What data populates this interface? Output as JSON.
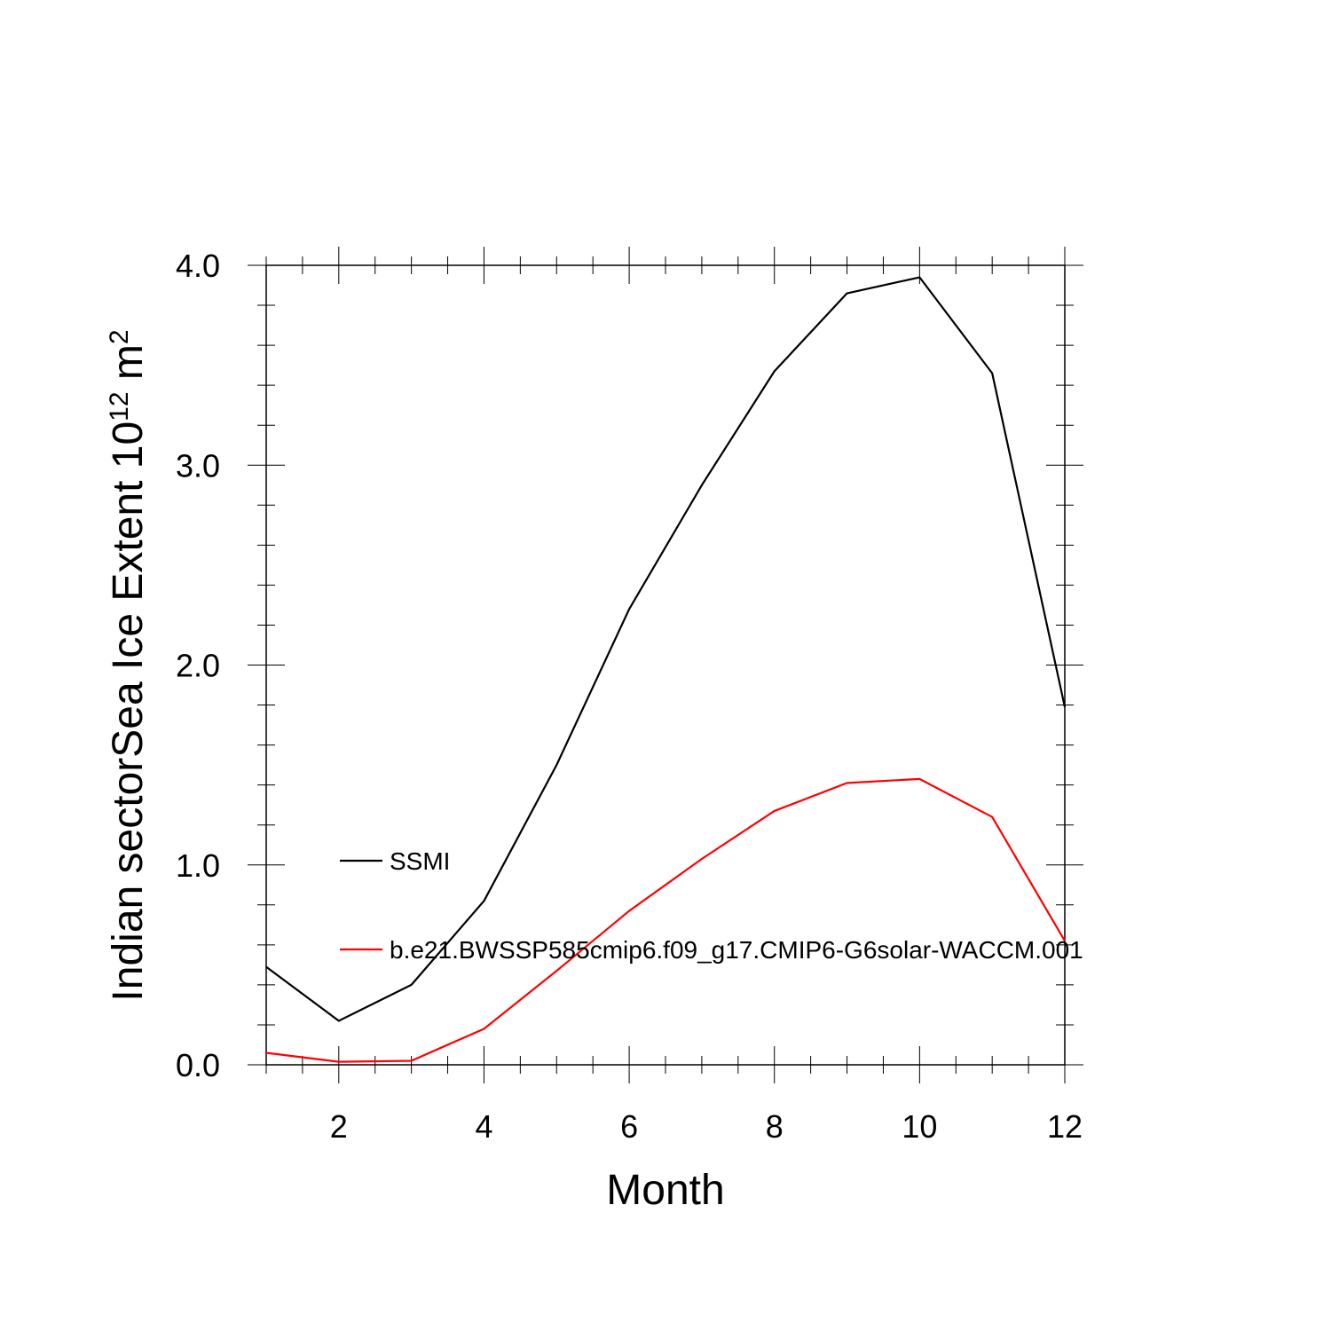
{
  "chart_data": {
    "type": "line",
    "title": "",
    "xlabel": "Month",
    "ylabel_prefix": "Indian sectorSea Ice Extent 10",
    "ylabel_exponent1": "12",
    "ylabel_unit": " m",
    "ylabel_exponent2": "2",
    "xlim": [
      1,
      12
    ],
    "ylim": [
      0,
      4
    ],
    "x_ticks": [
      2,
      4,
      6,
      8,
      10,
      12
    ],
    "x_tick_labels": [
      "2",
      "4",
      "6",
      "8",
      "10",
      "12"
    ],
    "y_ticks": [
      0,
      1,
      2,
      3,
      4
    ],
    "y_tick_labels": [
      "0.0",
      "1.0",
      "2.0",
      "3.0",
      "4.0"
    ],
    "legend_placement": "inside-left",
    "grid": false,
    "x": [
      1,
      2,
      3,
      4,
      5,
      6,
      7,
      8,
      9,
      10,
      11,
      12
    ],
    "series": [
      {
        "name": "SSMI",
        "color": "#000000",
        "values": [
          0.49,
          0.22,
          0.4,
          0.82,
          1.5,
          2.28,
          2.9,
          3.47,
          3.86,
          3.94,
          3.46,
          1.79
        ]
      },
      {
        "name": "b.e21.BWSSP585cmip6.f09_g17.CMIP6-G6solar-WACCM.001",
        "color": "#ff0000",
        "values": [
          0.06,
          0.015,
          0.02,
          0.18,
          0.47,
          0.77,
          1.03,
          1.27,
          1.41,
          1.43,
          1.24,
          0.62
        ]
      }
    ]
  }
}
